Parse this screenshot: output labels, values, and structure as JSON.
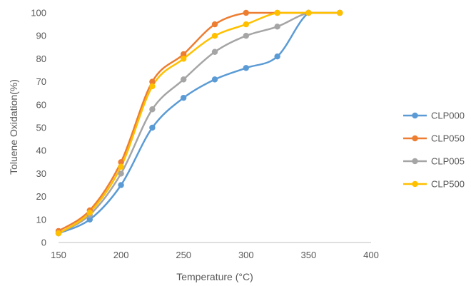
{
  "chart_data": {
    "type": "line",
    "title": "",
    "xlabel": "Temperature (°C)",
    "ylabel": "Toluene Oxidation(%)",
    "xlim": [
      150,
      400
    ],
    "ylim": [
      0,
      100
    ],
    "xticks": [
      150,
      200,
      250,
      300,
      350,
      400
    ],
    "yticks": [
      0,
      10,
      20,
      30,
      40,
      50,
      60,
      70,
      80,
      90,
      100
    ],
    "grid": false,
    "smooth": true,
    "legend_position": "right",
    "x": [
      150,
      175,
      200,
      225,
      250,
      275,
      300,
      325,
      350,
      375
    ],
    "series": [
      {
        "name": "CLP000",
        "color": "#5B9BD5",
        "values": [
          4,
          10,
          25,
          50,
          63,
          71,
          76,
          81,
          100,
          100
        ]
      },
      {
        "name": "CLP050",
        "color": "#ED7D31",
        "values": [
          5,
          14,
          35,
          70,
          82,
          95,
          100,
          100,
          100,
          100
        ]
      },
      {
        "name": "CLP005",
        "color": "#A5A5A5",
        "values": [
          4,
          12,
          30,
          58,
          71,
          83,
          90,
          94,
          100,
          100
        ]
      },
      {
        "name": "CLP500",
        "color": "#FFC000",
        "values": [
          4,
          13,
          33,
          68,
          80,
          90,
          95,
          100,
          100,
          100
        ]
      }
    ]
  }
}
